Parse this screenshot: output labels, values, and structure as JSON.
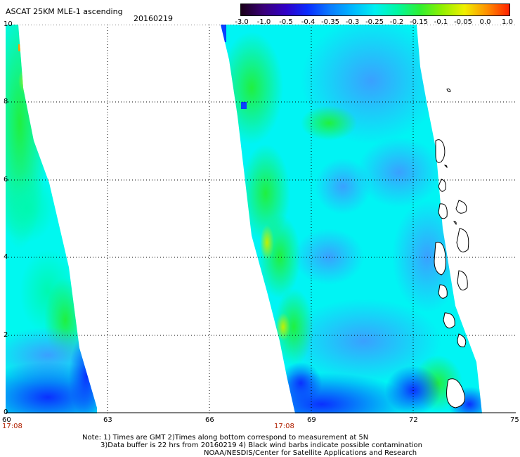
{
  "header": {
    "title": "ASCAT 25KM MLE-1 ascending",
    "date": "20160219"
  },
  "colorbar": {
    "labels": [
      "-3.0",
      "-1.0",
      "-0.5",
      "-0.4",
      "-0.35",
      "-0.3",
      "-0.25",
      "-0.2",
      "-0.15",
      "-0.1",
      "-0.05",
      "0.0",
      "1.0"
    ],
    "colors": [
      "#1a0018",
      "#3a0078",
      "#3000c8",
      "#0a2cff",
      "#0a7cff",
      "#00b8ff",
      "#00f0f0",
      "#00f8a0",
      "#30f030",
      "#90f000",
      "#f0f000",
      "#ff9000",
      "#ff2000"
    ]
  },
  "axes": {
    "y_ticks": [
      "10",
      "8",
      "6",
      "4",
      "2",
      "0"
    ],
    "x_left": [
      "60",
      "63"
    ],
    "x_right": [
      "66",
      "69",
      "72",
      "75"
    ],
    "time_labels": [
      "17:08",
      "17:08"
    ]
  },
  "notes": [
    "Note: 1) Times are GMT 2)Times along bottom correspond to measurement at 5N",
    "3)Data buffer is 22 hrs from 20160219 4) Black wind barbs indicate possible contamination",
    "NOAA/NESDIS/Center for Satellite Applications and Research"
  ],
  "colors": {
    "cyan": "#00ffff",
    "light_blue": "#38b8ff",
    "blue": "#0a40ff",
    "green": "#20f040",
    "yellow_green": "#b0f000"
  }
}
